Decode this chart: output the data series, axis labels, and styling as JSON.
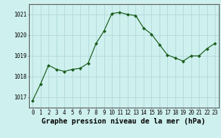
{
  "x": [
    0,
    1,
    2,
    3,
    4,
    5,
    6,
    7,
    8,
    9,
    10,
    11,
    12,
    13,
    14,
    15,
    16,
    17,
    18,
    19,
    20,
    21,
    22,
    23
  ],
  "y": [
    1016.85,
    1017.65,
    1018.55,
    1018.35,
    1018.25,
    1018.35,
    1018.4,
    1018.65,
    1019.6,
    1020.2,
    1021.05,
    1021.1,
    1021.0,
    1020.95,
    1020.35,
    1020.05,
    1019.55,
    1019.05,
    1018.9,
    1018.75,
    1019.0,
    1019.0,
    1019.35,
    1019.6
  ],
  "line_color": "#1a5c1a",
  "marker": "D",
  "marker_size": 2.2,
  "background_color": "#cef0ee",
  "grid_color": "#b0d8d8",
  "xlabel": "Graphe pression niveau de la mer (hPa)",
  "xlabel_fontsize": 7.5,
  "yticks": [
    1017,
    1018,
    1019,
    1020,
    1021
  ],
  "ylim": [
    1016.5,
    1021.5
  ],
  "xlim": [
    -0.5,
    23.5
  ],
  "xtick_labels": [
    "0",
    "1",
    "2",
    "3",
    "4",
    "5",
    "6",
    "7",
    "8",
    "9",
    "10",
    "11",
    "12",
    "13",
    "14",
    "15",
    "16",
    "17",
    "18",
    "19",
    "20",
    "21",
    "22",
    "23"
  ],
  "tick_fontsize": 5.5,
  "axis_color": "#888888",
  "spine_color": "#555555"
}
